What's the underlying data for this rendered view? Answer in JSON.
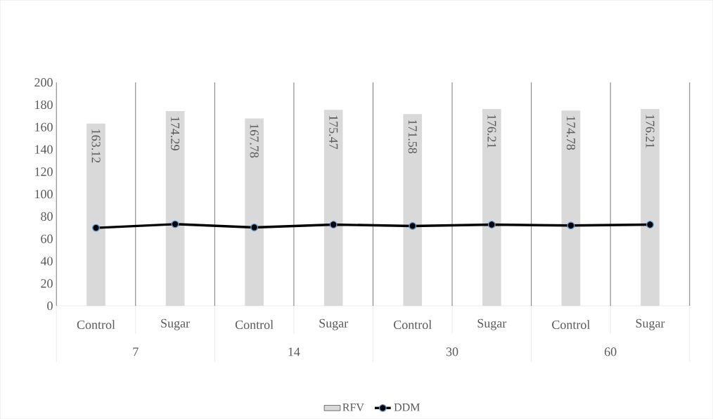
{
  "chart_data": {
    "type": "bar",
    "categories": [
      "Control",
      "Sugar",
      "Control",
      "Sugar",
      "Control",
      "Sugar",
      "Control",
      "Sugar"
    ],
    "annotations": [
      "7",
      "14",
      "30",
      "60"
    ],
    "series": [
      {
        "name": "RFV",
        "color": "#d9d9d9",
        "values": [
          163.12,
          174.29,
          167.78,
          175.47,
          171.58,
          176.21,
          174.78,
          176.21
        ],
        "value_labels": [
          "163.12",
          "174.29",
          "167.78",
          "175.47",
          "171.58",
          "176.21",
          "174.78",
          "176.21"
        ]
      },
      {
        "name": "DDM",
        "type": "line",
        "color": "#000000",
        "marker": "circle",
        "values": [
          69.8,
          73.1,
          70.2,
          72.7,
          71.5,
          72.7,
          71.9,
          72.7
        ]
      }
    ],
    "ylim": [
      0,
      200
    ],
    "yticks": [
      0,
      20,
      40,
      60,
      80,
      100,
      120,
      140,
      160,
      180,
      200
    ],
    "grid": "x",
    "legend": "bottom"
  }
}
